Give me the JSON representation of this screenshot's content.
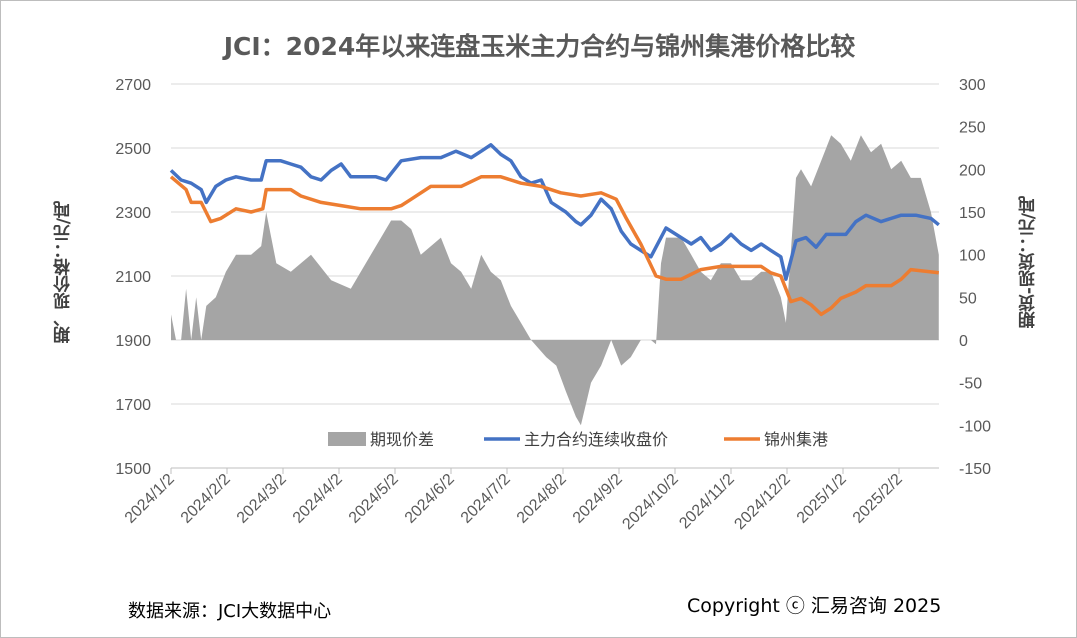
{
  "chart_data": {
    "type": "line",
    "title": "JCI：2024年以来连盘玉米主力合约与锦州集港价格比较",
    "ylabel_left": "期、现价格：元/吨",
    "ylabel_right": "期货-现货：元/吨",
    "ylim_left": [
      1500,
      2700
    ],
    "ylim_right": [
      -150,
      300
    ],
    "yticks_left": [
      "1500",
      "1700",
      "1900",
      "2100",
      "2300",
      "2500",
      "2700"
    ],
    "yticks_right": [
      "-150",
      "-100",
      "-50",
      "0",
      "50",
      "100",
      "150",
      "200",
      "250",
      "300"
    ],
    "x_unit": "months since 2024/1/2",
    "xlim": [
      0,
      13.71
    ],
    "xticks": [
      "2024/1/2",
      "2024/2/2",
      "2024/3/2",
      "2024/4/2",
      "2024/5/2",
      "2024/6/2",
      "2024/7/2",
      "2024/8/2",
      "2024/9/2",
      "2024/10/2",
      "2024/11/2",
      "2024/12/2",
      "2025/1/2",
      "2025/2/2"
    ],
    "legend_position": "bottom-center",
    "series": [
      {
        "name": "期现价差",
        "type": "area",
        "axis": "right",
        "color": "#a5a5a5",
        "points": [
          [
            0,
            30
          ],
          [
            0.09,
            0
          ],
          [
            0.18,
            0
          ],
          [
            0.27,
            60
          ],
          [
            0.36,
            0
          ],
          [
            0.45,
            50
          ],
          [
            0.54,
            0
          ],
          [
            0.63,
            40
          ],
          [
            0.8,
            50
          ],
          [
            0.98,
            80
          ],
          [
            1.16,
            100
          ],
          [
            1.43,
            100
          ],
          [
            1.61,
            110
          ],
          [
            1.7,
            150
          ],
          [
            1.88,
            90
          ],
          [
            2.14,
            80
          ],
          [
            2.5,
            100
          ],
          [
            2.86,
            70
          ],
          [
            3.21,
            60
          ],
          [
            3.39,
            80
          ],
          [
            3.75,
            120
          ],
          [
            3.93,
            140
          ],
          [
            4.11,
            140
          ],
          [
            4.29,
            130
          ],
          [
            4.46,
            100
          ],
          [
            4.82,
            120
          ],
          [
            5,
            90
          ],
          [
            5.18,
            80
          ],
          [
            5.36,
            60
          ],
          [
            5.54,
            100
          ],
          [
            5.71,
            80
          ],
          [
            5.89,
            70
          ],
          [
            6.07,
            40
          ],
          [
            6.25,
            20
          ],
          [
            6.43,
            0
          ],
          [
            6.7,
            -20
          ],
          [
            6.88,
            -30
          ],
          [
            7.05,
            -60
          ],
          [
            7.23,
            -90
          ],
          [
            7.32,
            -100
          ],
          [
            7.5,
            -50
          ],
          [
            7.68,
            -30
          ],
          [
            7.86,
            0
          ],
          [
            8.04,
            -30
          ],
          [
            8.21,
            -20
          ],
          [
            8.39,
            0
          ],
          [
            8.57,
            0
          ],
          [
            8.66,
            -5
          ],
          [
            8.75,
            90
          ],
          [
            8.84,
            120
          ],
          [
            9.11,
            120
          ],
          [
            9.29,
            100
          ],
          [
            9.46,
            80
          ],
          [
            9.64,
            70
          ],
          [
            9.82,
            90
          ],
          [
            10,
            90
          ],
          [
            10.18,
            70
          ],
          [
            10.36,
            70
          ],
          [
            10.54,
            80
          ],
          [
            10.71,
            80
          ],
          [
            10.89,
            50
          ],
          [
            10.98,
            20
          ],
          [
            11.16,
            190
          ],
          [
            11.25,
            200
          ],
          [
            11.43,
            180
          ],
          [
            11.61,
            210
          ],
          [
            11.79,
            240
          ],
          [
            11.96,
            230
          ],
          [
            12.14,
            210
          ],
          [
            12.32,
            240
          ],
          [
            12.5,
            220
          ],
          [
            12.68,
            230
          ],
          [
            12.86,
            200
          ],
          [
            13.04,
            210
          ],
          [
            13.21,
            190
          ],
          [
            13.39,
            190
          ],
          [
            13.57,
            150
          ],
          [
            13.71,
            100
          ]
        ]
      },
      {
        "name": "主力合约连续收盘价",
        "type": "line",
        "axis": "left",
        "color": "#4472c4",
        "points": [
          [
            0,
            2430
          ],
          [
            0.18,
            2400
          ],
          [
            0.36,
            2390
          ],
          [
            0.54,
            2370
          ],
          [
            0.63,
            2330
          ],
          [
            0.8,
            2380
          ],
          [
            0.98,
            2400
          ],
          [
            1.16,
            2410
          ],
          [
            1.43,
            2400
          ],
          [
            1.61,
            2400
          ],
          [
            1.7,
            2460
          ],
          [
            1.96,
            2460
          ],
          [
            2.14,
            2450
          ],
          [
            2.32,
            2440
          ],
          [
            2.5,
            2410
          ],
          [
            2.68,
            2400
          ],
          [
            2.86,
            2430
          ],
          [
            3.04,
            2450
          ],
          [
            3.21,
            2410
          ],
          [
            3.39,
            2410
          ],
          [
            3.66,
            2410
          ],
          [
            3.84,
            2400
          ],
          [
            4.11,
            2460
          ],
          [
            4.46,
            2470
          ],
          [
            4.82,
            2470
          ],
          [
            5.09,
            2490
          ],
          [
            5.36,
            2470
          ],
          [
            5.54,
            2490
          ],
          [
            5.71,
            2510
          ],
          [
            5.89,
            2480
          ],
          [
            6.07,
            2460
          ],
          [
            6.25,
            2410
          ],
          [
            6.43,
            2390
          ],
          [
            6.61,
            2400
          ],
          [
            6.79,
            2330
          ],
          [
            7.05,
            2300
          ],
          [
            7.23,
            2270
          ],
          [
            7.32,
            2260
          ],
          [
            7.5,
            2290
          ],
          [
            7.68,
            2340
          ],
          [
            7.86,
            2310
          ],
          [
            8.04,
            2240
          ],
          [
            8.21,
            2200
          ],
          [
            8.39,
            2180
          ],
          [
            8.57,
            2160
          ],
          [
            8.75,
            2220
          ],
          [
            8.84,
            2250
          ],
          [
            9.11,
            2220
          ],
          [
            9.29,
            2200
          ],
          [
            9.46,
            2220
          ],
          [
            9.64,
            2180
          ],
          [
            9.82,
            2200
          ],
          [
            10,
            2230
          ],
          [
            10.18,
            2200
          ],
          [
            10.36,
            2180
          ],
          [
            10.54,
            2200
          ],
          [
            10.71,
            2180
          ],
          [
            10.89,
            2160
          ],
          [
            10.98,
            2090
          ],
          [
            11.16,
            2210
          ],
          [
            11.34,
            2220
          ],
          [
            11.52,
            2190
          ],
          [
            11.7,
            2230
          ],
          [
            12.05,
            2230
          ],
          [
            12.23,
            2270
          ],
          [
            12.41,
            2290
          ],
          [
            12.68,
            2270
          ],
          [
            13.04,
            2290
          ],
          [
            13.3,
            2290
          ],
          [
            13.57,
            2280
          ],
          [
            13.71,
            2260
          ]
        ]
      },
      {
        "name": "锦州集港",
        "type": "line",
        "axis": "left",
        "color": "#ed7d31",
        "points": [
          [
            0,
            2410
          ],
          [
            0.27,
            2370
          ],
          [
            0.36,
            2330
          ],
          [
            0.54,
            2330
          ],
          [
            0.71,
            2270
          ],
          [
            0.89,
            2280
          ],
          [
            1.16,
            2310
          ],
          [
            1.43,
            2300
          ],
          [
            1.64,
            2310
          ],
          [
            1.7,
            2370
          ],
          [
            2.14,
            2370
          ],
          [
            2.32,
            2350
          ],
          [
            2.68,
            2330
          ],
          [
            3.04,
            2320
          ],
          [
            3.39,
            2310
          ],
          [
            3.93,
            2310
          ],
          [
            4.11,
            2320
          ],
          [
            4.29,
            2340
          ],
          [
            4.64,
            2380
          ],
          [
            5.18,
            2380
          ],
          [
            5.54,
            2410
          ],
          [
            5.89,
            2410
          ],
          [
            6.25,
            2390
          ],
          [
            6.61,
            2380
          ],
          [
            6.96,
            2360
          ],
          [
            7.32,
            2350
          ],
          [
            7.68,
            2360
          ],
          [
            7.95,
            2340
          ],
          [
            8.13,
            2280
          ],
          [
            8.39,
            2200
          ],
          [
            8.66,
            2100
          ],
          [
            8.84,
            2090
          ],
          [
            9.11,
            2090
          ],
          [
            9.46,
            2120
          ],
          [
            9.82,
            2130
          ],
          [
            10.54,
            2130
          ],
          [
            10.71,
            2110
          ],
          [
            10.89,
            2100
          ],
          [
            11.07,
            2020
          ],
          [
            11.25,
            2030
          ],
          [
            11.43,
            2010
          ],
          [
            11.61,
            1980
          ],
          [
            11.79,
            2000
          ],
          [
            11.96,
            2030
          ],
          [
            12.23,
            2050
          ],
          [
            12.41,
            2070
          ],
          [
            12.86,
            2070
          ],
          [
            13.04,
            2090
          ],
          [
            13.21,
            2120
          ],
          [
            13.71,
            2110
          ]
        ]
      }
    ]
  },
  "footer": {
    "source": "数据来源：JCI大数据中心",
    "copyright": "Copyright ⓒ 汇易咨询 2025"
  }
}
